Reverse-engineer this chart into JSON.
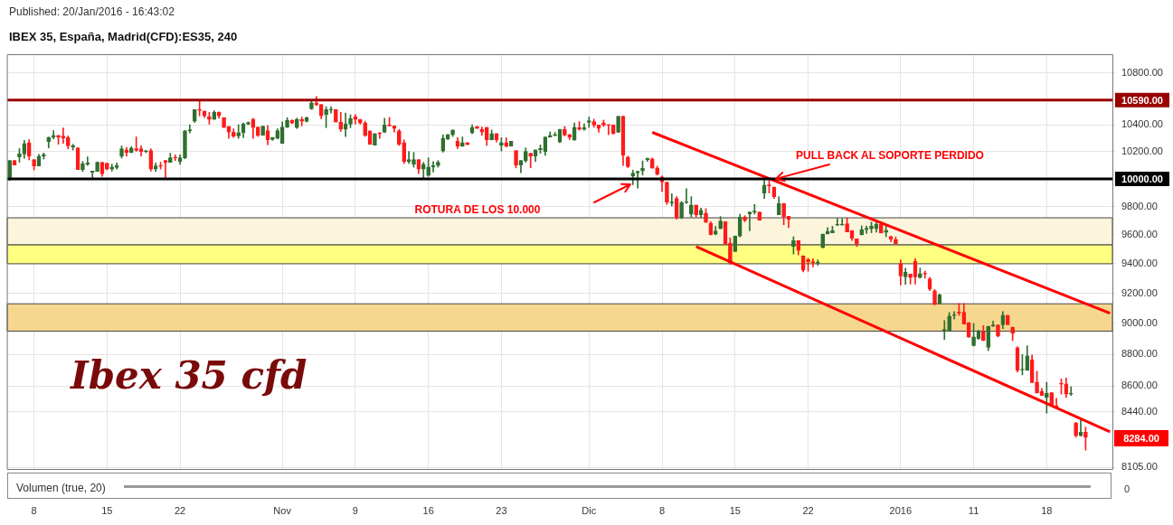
{
  "chart_data": {
    "type": "candlestick",
    "title": "IBEX 35, España, Madrid(CFD):ES35, 240",
    "annotations": [
      "Published: 20/Jan/2016 - 16:43:02",
      "ROTURA DE LOS 10.000",
      {
        "text": "PULL BACK AL SOPORTE PERDIDO",
        "y": 10000
      },
      "Ibex 35 cfd",
      "8284.00",
      "Volumen (true, 20)",
      "0"
    ],
    "categories": [
      null,
      null,
      null,
      null,
      null,
      "8",
      null,
      null,
      null,
      null,
      null,
      null,
      null,
      null,
      null,
      null,
      null,
      null,
      null,
      null,
      "15",
      null,
      null,
      null,
      null,
      null,
      null,
      null,
      null,
      null,
      null,
      null,
      null,
      null,
      null,
      "22",
      null,
      null,
      null,
      null,
      null,
      null,
      null,
      null,
      null,
      null,
      null,
      null,
      null,
      null,
      null,
      null,
      null,
      null,
      null,
      null,
      "Nov",
      null,
      null,
      null,
      null,
      null,
      null,
      null,
      null,
      null,
      null,
      null,
      null,
      null,
      null,
      "9",
      null,
      null,
      null,
      null,
      null,
      null,
      null,
      null,
      null,
      null,
      null,
      null,
      null,
      null,
      "16",
      null,
      null,
      null,
      null,
      null,
      null,
      null,
      null,
      null,
      null,
      null,
      null,
      null,
      null,
      "23",
      null,
      null,
      null,
      null,
      null,
      null,
      null,
      null,
      null,
      null,
      null,
      null,
      null,
      null,
      null,
      null,
      null,
      "Dic",
      null,
      null,
      null,
      null,
      null,
      null,
      null,
      null,
      null,
      null,
      null,
      null,
      null,
      null,
      "8",
      null,
      null,
      null,
      null,
      null,
      null,
      null,
      null,
      null,
      null,
      null,
      null,
      null,
      null,
      "15",
      null,
      null,
      null,
      null,
      null,
      null,
      null,
      null,
      null,
      null,
      null,
      null,
      null,
      null,
      "22",
      null,
      null,
      null,
      null,
      null,
      null,
      null,
      null,
      null,
      null,
      null,
      null,
      null,
      null,
      null,
      null,
      null,
      null,
      "2016",
      null,
      null,
      null,
      null,
      null,
      null,
      null,
      null,
      null,
      null,
      null,
      null,
      null,
      null,
      "11",
      null,
      null,
      null,
      null,
      null,
      null,
      null,
      null,
      null,
      null,
      null,
      null,
      null,
      null,
      "18",
      null,
      null,
      null,
      null,
      null,
      null,
      null,
      null,
      null,
      null,
      null,
      null,
      null
    ],
    "ohlc": [
      [
        10000,
        10134,
        9987,
        10134
      ],
      [
        10134,
        10134,
        10100,
        10100
      ],
      [
        10161,
        10223,
        10121,
        10183
      ],
      [
        10183,
        10284,
        10150,
        10261
      ],
      [
        10268,
        10290,
        10138,
        10167
      ],
      [
        10141,
        10141,
        10065,
        10094
      ],
      [
        10094,
        10179,
        10094,
        10167
      ],
      [
        10167,
        10190,
        10145,
        10176
      ],
      [
        10275,
        10308,
        10228,
        10308
      ],
      [
        10308,
        10357,
        10295,
        10322
      ],
      [
        10322,
        10322,
        10255,
        10308
      ],
      [
        10317,
        10377,
        10261,
        10301
      ],
      [
        10304,
        10317,
        10221,
        10243
      ],
      [
        10234,
        10255,
        10212,
        10243
      ],
      [
        10228,
        10228,
        10067,
        10067
      ],
      [
        10067,
        10127,
        10054,
        10109
      ],
      [
        10107,
        10161,
        10098,
        10116
      ],
      [
        10047,
        10056,
        10004,
        10056
      ],
      [
        10054,
        10125,
        10054,
        10121
      ],
      [
        10121,
        10121,
        10018,
        10036
      ],
      [
        10114,
        10114,
        10065,
        10071
      ],
      [
        10071,
        10107,
        10056,
        10087
      ],
      [
        10083,
        10116,
        10071,
        10096
      ],
      [
        10165,
        10243,
        10152,
        10221
      ],
      [
        10214,
        10232,
        10165,
        10194
      ],
      [
        10192,
        10237,
        10192,
        10226
      ],
      [
        10221,
        10310,
        10203,
        10210
      ],
      [
        10221,
        10243,
        10167,
        10201
      ],
      [
        10199,
        10210,
        10192,
        10201
      ],
      [
        10208,
        10221,
        10056,
        10071
      ],
      [
        10071,
        10116,
        10054,
        10094
      ],
      [
        10094,
        10121,
        10071,
        10092
      ],
      [
        10134,
        10134,
        10000,
        10121
      ],
      [
        10121,
        10188,
        10121,
        10154
      ],
      [
        10154,
        10176,
        10134,
        10152
      ],
      [
        10127,
        10176,
        10105,
        10154
      ],
      [
        10154,
        10360,
        10147,
        10355
      ],
      [
        10355,
        10402,
        10340,
        10364
      ],
      [
        10429,
        10516,
        10419,
        10516
      ],
      [
        10514,
        10581,
        10469,
        10511
      ],
      [
        10507,
        10507,
        10456,
        10469
      ],
      [
        10462,
        10496,
        10406,
        10442
      ],
      [
        10442,
        10509,
        10442,
        10496
      ],
      [
        10496,
        10500,
        10451,
        10469
      ],
      [
        10456,
        10456,
        10380,
        10380
      ],
      [
        10389,
        10389,
        10299,
        10346
      ],
      [
        10346,
        10371,
        10306,
        10315
      ],
      [
        10317,
        10402,
        10299,
        10342
      ],
      [
        10342,
        10415,
        10304,
        10409
      ],
      [
        10406,
        10424,
        10402,
        10418
      ],
      [
        10442,
        10451,
        10299,
        10380
      ],
      [
        10384,
        10384,
        10313,
        10322
      ],
      [
        10322,
        10391,
        10322,
        10391
      ],
      [
        10357,
        10395,
        10252,
        10288
      ],
      [
        10290,
        10306,
        10284,
        10306
      ],
      [
        10299,
        10371,
        10295,
        10357
      ],
      [
        10261,
        10424,
        10261,
        10384
      ],
      [
        10384,
        10456,
        10380,
        10435
      ],
      [
        10435,
        10440,
        10409,
        10415
      ],
      [
        10380,
        10451,
        10373,
        10444
      ],
      [
        10442,
        10460,
        10393,
        10429
      ],
      [
        10427,
        10460,
        10424,
        10456
      ],
      [
        10523,
        10585,
        10518,
        10569
      ],
      [
        10569,
        10618,
        10547,
        10556
      ],
      [
        10556,
        10556,
        10447,
        10469
      ],
      [
        10480,
        10540,
        10380,
        10516
      ],
      [
        10514,
        10540,
        10491,
        10516
      ],
      [
        10516,
        10516,
        10422,
        10422
      ],
      [
        10422,
        10496,
        10351,
        10368
      ],
      [
        10368,
        10491,
        10313,
        10406
      ],
      [
        10406,
        10478,
        10380,
        10449
      ],
      [
        10462,
        10478,
        10406,
        10442
      ],
      [
        10442,
        10442,
        10406,
        10415
      ],
      [
        10415,
        10429,
        10313,
        10322
      ],
      [
        10355,
        10355,
        10255,
        10255
      ],
      [
        10248,
        10335,
        10248,
        10335
      ],
      [
        10335,
        10344,
        10299,
        10333
      ],
      [
        10344,
        10451,
        10344,
        10400
      ],
      [
        10400,
        10458,
        10393,
        10393
      ],
      [
        10393,
        10393,
        10346,
        10373
      ],
      [
        10355,
        10366,
        10246,
        10255
      ],
      [
        10268,
        10288,
        10112,
        10127
      ],
      [
        10127,
        10201,
        10112,
        10141
      ],
      [
        10107,
        10194,
        10085,
        10141
      ],
      [
        10141,
        10141,
        10038,
        10071
      ],
      [
        10071,
        10121,
        10004,
        10107
      ],
      [
        10025,
        10154,
        10018,
        10087
      ],
      [
        10085,
        10127,
        10049,
        10096
      ],
      [
        10098,
        10134,
        10085,
        10121
      ],
      [
        10205,
        10326,
        10196,
        10301
      ],
      [
        10293,
        10328,
        10290,
        10328
      ],
      [
        10326,
        10362,
        10313,
        10362
      ],
      [
        10277,
        10304,
        10223,
        10239
      ],
      [
        10239,
        10310,
        10239,
        10268
      ],
      [
        10268,
        10268,
        10252,
        10252
      ],
      [
        10339,
        10402,
        10335,
        10382
      ],
      [
        10389,
        10389,
        10373,
        10373
      ],
      [
        10368,
        10384,
        10322,
        10346
      ],
      [
        10382,
        10382,
        10246,
        10288
      ],
      [
        10288,
        10362,
        10288,
        10335
      ],
      [
        10335,
        10335,
        10272,
        10288
      ],
      [
        10248,
        10304,
        10205,
        10268
      ],
      [
        10268,
        10304,
        10234,
        10241
      ],
      [
        10241,
        10277,
        10241,
        10277
      ],
      [
        10208,
        10208,
        10080,
        10100
      ],
      [
        10100,
        10134,
        10045,
        10134
      ],
      [
        10134,
        10228,
        10121,
        10201
      ],
      [
        10188,
        10188,
        10080,
        10167
      ],
      [
        10167,
        10214,
        10127,
        10214
      ],
      [
        10214,
        10250,
        10188,
        10223
      ],
      [
        10201,
        10310,
        10172,
        10310
      ],
      [
        10308,
        10348,
        10308,
        10322
      ],
      [
        10319,
        10344,
        10319,
        10328
      ],
      [
        10272,
        10368,
        10266,
        10368
      ],
      [
        10368,
        10389,
        10317,
        10324
      ],
      [
        10328,
        10328,
        10290,
        10308
      ],
      [
        10286,
        10415,
        10286,
        10382
      ],
      [
        10380,
        10426,
        10360,
        10366
      ],
      [
        10366,
        10408,
        10360,
        10380
      ],
      [
        10420,
        10460,
        10382,
        10433
      ],
      [
        10426,
        10444,
        10382,
        10400
      ],
      [
        10400,
        10400,
        10344,
        10373
      ],
      [
        10417,
        10437,
        10388,
        10400
      ],
      [
        10400,
        10404,
        10326,
        10397
      ],
      [
        10400,
        10400,
        10333,
        10333
      ],
      [
        10344,
        10466,
        10344,
        10466
      ],
      [
        10466,
        10466,
        10098,
        10173
      ],
      [
        10160,
        10166,
        10082,
        10089
      ],
      [
        10020,
        10064,
        9957,
        10042
      ],
      [
        10042,
        10055,
        9933,
        10055
      ],
      [
        10058,
        10131,
        10027,
        10078
      ],
      [
        10140,
        10153,
        10127,
        10149
      ],
      [
        10146,
        10153,
        10078,
        10078
      ],
      [
        10080,
        10093,
        10027,
        10033
      ],
      [
        10013,
        10022,
        9908,
        9976
      ],
      [
        9976,
        9976,
        9815,
        9832
      ],
      [
        9826,
        9892,
        9804,
        9830
      ],
      [
        9858,
        9871,
        9710,
        9720
      ],
      [
        9720,
        9837,
        9714,
        9828
      ],
      [
        9828,
        9929,
        9822,
        9834
      ],
      [
        9746,
        9871,
        9725,
        9811
      ],
      [
        9811,
        9811,
        9725,
        9742
      ],
      [
        9742,
        9789,
        9720,
        9774
      ],
      [
        9753,
        9785,
        9688,
        9688
      ],
      [
        9682,
        9692,
        9600,
        9600
      ],
      [
        9604,
        9660,
        9600,
        9628
      ],
      [
        9643,
        9729,
        9643,
        9697
      ],
      [
        9692,
        9692,
        9536,
        9536
      ],
      [
        9542,
        9579,
        9396,
        9408
      ],
      [
        9484,
        9592,
        9484,
        9592
      ],
      [
        9592,
        9746,
        9585,
        9725
      ],
      [
        9725,
        9735,
        9692,
        9703
      ],
      [
        9746,
        9761,
        9628,
        9761
      ],
      [
        9761,
        9815,
        9746,
        9763
      ],
      [
        9761,
        9761,
        9703,
        9703
      ],
      [
        9897,
        10000,
        9858,
        9955
      ],
      [
        9951,
        9987,
        9897,
        9949
      ],
      [
        9940,
        9940,
        9858,
        9871
      ],
      [
        9742,
        9871,
        9742,
        9822
      ],
      [
        9822,
        9822,
        9671,
        9729
      ],
      [
        9731,
        9731,
        9650,
        9710
      ],
      [
        9519,
        9587,
        9467,
        9560
      ],
      [
        9560,
        9560,
        9461,
        9492
      ],
      [
        9455,
        9455,
        9345,
        9355
      ],
      [
        9430,
        9438,
        9349,
        9412
      ],
      [
        9412,
        9434,
        9378,
        9408
      ],
      [
        9405,
        9427,
        9390,
        9409
      ],
      [
        9510,
        9606,
        9510,
        9606
      ],
      [
        9606,
        9651,
        9606,
        9625
      ],
      [
        9615,
        9660,
        9615,
        9630
      ],
      [
        9668,
        9716,
        9665,
        9672
      ],
      [
        9668,
        9714,
        9668,
        9675
      ],
      [
        9679,
        9718,
        9621,
        9621
      ],
      [
        9630,
        9630,
        9561,
        9576
      ],
      [
        9572,
        9572,
        9519,
        9538
      ],
      [
        9600,
        9663,
        9600,
        9637
      ],
      [
        9637,
        9663,
        9610,
        9647
      ],
      [
        9643,
        9690,
        9615,
        9662
      ],
      [
        9643,
        9690,
        9619,
        9675
      ],
      [
        9675,
        9690,
        9613,
        9613
      ],
      [
        9617,
        9675,
        9587,
        9632
      ],
      [
        9589,
        9589,
        9553,
        9570
      ],
      [
        9568,
        9585,
        9538,
        9538
      ],
      [
        9400,
        9427,
        9256,
        9316
      ],
      [
        9310,
        9370,
        9260,
        9342
      ],
      [
        9330,
        9330,
        9262,
        9306
      ],
      [
        9416,
        9436,
        9262,
        9310
      ],
      [
        9306,
        9370,
        9302,
        9332
      ],
      [
        9332,
        9350,
        9302,
        9330
      ],
      [
        9298,
        9308,
        9218,
        9228
      ],
      [
        9216,
        9226,
        9122,
        9127
      ],
      [
        9131,
        9196,
        9127,
        9190
      ],
      [
        8955,
        9019,
        8896,
        8959
      ],
      [
        8955,
        9072,
        8951,
        9049
      ],
      [
        9052,
        9078,
        9029,
        9055
      ],
      [
        9071,
        9132,
        9054,
        9069
      ],
      [
        9074,
        9132,
        8996,
        8996
      ],
      [
        9006,
        9006,
        8910,
        8910
      ],
      [
        8857,
        9000,
        8853,
        8912
      ],
      [
        8902,
        8957,
        8898,
        8947
      ],
      [
        8947,
        8986,
        8888,
        8888
      ],
      [
        8845,
        8982,
        8824,
        8982
      ],
      [
        8984,
        9016,
        8980,
        8986
      ],
      [
        8990,
        8990,
        8912,
        8918
      ],
      [
        8992,
        9078,
        8967,
        9054
      ],
      [
        9054,
        9054,
        8992,
        8992
      ],
      [
        8976,
        8976,
        8888,
        8937
      ],
      [
        8843,
        8849,
        8688,
        8698
      ],
      [
        8700,
        8800,
        8669,
        8702
      ],
      [
        8698,
        8855,
        8698,
        8790
      ],
      [
        8765,
        8796,
        8620,
        8620
      ],
      [
        8624,
        8692,
        8555,
        8555
      ],
      [
        8564,
        8585,
        8540,
        8540
      ],
      [
        8527,
        8623,
        8431,
        8555
      ],
      [
        8558,
        8558,
        8476,
        8476
      ],
      [
        8476,
        8522,
        8462,
        8462
      ],
      [
        8613,
        8644,
        8549,
        8611
      ],
      [
        8613,
        8649,
        8527,
        8549
      ],
      [
        8549,
        8595,
        8540,
        8551
      ],
      [
        8370,
        8375,
        8284,
        8293
      ],
      [
        8293,
        8394,
        8291,
        8315
      ],
      [
        8315,
        8345,
        8207,
        8284
      ],
      null,
      null,
      null,
      null,
      null
    ],
    "series": [
      {
        "type": "line",
        "color": "#ff0000",
        "values": [
          null,
          null,
          null,
          null,
          null,
          null,
          null,
          null,
          null,
          null,
          null,
          null,
          null,
          null,
          null,
          null,
          null,
          null,
          null,
          null,
          null,
          null,
          null,
          null,
          null,
          null,
          null,
          null,
          null,
          null,
          null,
          null,
          null,
          null,
          null,
          null,
          null,
          null,
          null,
          null,
          null,
          null,
          null,
          null,
          null,
          null,
          null,
          null,
          null,
          null,
          null,
          null,
          null,
          null,
          null,
          null,
          null,
          null,
          null,
          null,
          null,
          null,
          null,
          null,
          null,
          null,
          null,
          null,
          null,
          null,
          null,
          null,
          null,
          null,
          null,
          null,
          null,
          null,
          null,
          null,
          null,
          null,
          null,
          null,
          null,
          null,
          null,
          null,
          null,
          null,
          null,
          null,
          null,
          null,
          null,
          null,
          null,
          null,
          null,
          null,
          null,
          null,
          null,
          null,
          null,
          null,
          null,
          null,
          null,
          null,
          null,
          null,
          null,
          null,
          null,
          null,
          null,
          null,
          null,
          null,
          null,
          null,
          null,
          null,
          null,
          null,
          null,
          null,
          null,
          null,
          null,
          null,
          10344,
          null,
          null,
          null,
          null,
          null,
          null,
          null,
          null,
          null,
          null,
          null,
          null,
          null,
          null,
          null,
          null,
          null,
          null,
          null,
          null,
          null,
          null,
          null,
          null,
          null,
          null,
          null,
          null,
          null,
          null,
          null,
          null,
          null,
          null,
          null,
          null,
          null,
          null,
          null,
          null,
          null,
          null,
          null,
          null,
          null,
          null,
          null,
          null,
          null,
          null,
          null,
          null,
          null,
          null,
          null,
          null,
          null,
          null,
          null,
          null,
          null,
          null,
          null,
          null,
          null,
          null,
          null,
          null,
          null,
          null,
          null,
          null,
          null,
          null,
          null,
          null,
          null,
          null,
          null,
          null,
          null,
          null,
          null,
          null,
          null,
          null,
          null,
          null,
          null,
          null,
          null,
          null,
          null,
          9067
        ]
      },
      {
        "type": "line",
        "color": "#ff0000",
        "values": [
          null,
          null,
          null,
          null,
          null,
          null,
          null,
          null,
          null,
          null,
          null,
          null,
          null,
          null,
          null,
          null,
          null,
          null,
          null,
          null,
          null,
          null,
          null,
          null,
          null,
          null,
          null,
          null,
          null,
          null,
          null,
          null,
          null,
          null,
          null,
          null,
          null,
          null,
          null,
          null,
          null,
          null,
          null,
          null,
          null,
          null,
          null,
          null,
          null,
          null,
          null,
          null,
          null,
          null,
          null,
          null,
          null,
          null,
          null,
          null,
          null,
          null,
          null,
          null,
          null,
          null,
          null,
          null,
          null,
          null,
          null,
          null,
          null,
          null,
          null,
          null,
          null,
          null,
          null,
          null,
          null,
          null,
          null,
          null,
          null,
          null,
          null,
          null,
          null,
          null,
          null,
          null,
          null,
          null,
          null,
          null,
          null,
          null,
          null,
          null,
          null,
          null,
          null,
          null,
          null,
          null,
          null,
          null,
          null,
          null,
          null,
          null,
          null,
          null,
          null,
          null,
          null,
          null,
          null,
          null,
          null,
          null,
          null,
          null,
          null,
          null,
          null,
          null,
          null,
          null,
          null,
          null,
          null,
          null,
          null,
          null,
          null,
          null,
          null,
          null,
          null,
          9518,
          null,
          null,
          null,
          null,
          null,
          null,
          null,
          null,
          null,
          null,
          null,
          null,
          null,
          null,
          null,
          null,
          null,
          null,
          null,
          null,
          null,
          null,
          null,
          null,
          null,
          null,
          null,
          null,
          null,
          null,
          null,
          null,
          null,
          null,
          null,
          null,
          null,
          null,
          null,
          null,
          null,
          null,
          null,
          null,
          null,
          null,
          null,
          null,
          null,
          null,
          null,
          null,
          null,
          null,
          null,
          null,
          null,
          null,
          null,
          null,
          null,
          null,
          null,
          null,
          null,
          null,
          null,
          null,
          null,
          null,
          null,
          null,
          null,
          null,
          null,
          null,
          null,
          null,
          null,
          null,
          null,
          null,
          null,
          null,
          8317
        ]
      }
    ],
    "ylim": [
      8095,
      10950
    ],
    "yticks": [
      {
        "value": 8105,
        "label": "8105.00"
      },
      {
        "value": 8440,
        "label": "8440.00"
      },
      {
        "value": 8600,
        "label": "8600.00"
      },
      {
        "value": 8800,
        "label": "8800.00"
      },
      {
        "value": 9000,
        "label": "9000.00"
      },
      {
        "value": 9200,
        "label": "9200.00"
      },
      {
        "value": 9400,
        "label": "9400.00"
      },
      {
        "value": 9600,
        "label": "9600.00"
      },
      {
        "value": 9800,
        "label": "9800.00"
      },
      {
        "value": 10200,
        "label": "10200.00"
      },
      {
        "value": 10400,
        "label": "10400.00"
      },
      {
        "value": 10800,
        "label": "10800.00"
      }
    ],
    "log": "y",
    "grid": true,
    "bands": [
      {
        "axis": "y",
        "from": 9530,
        "to": 9720,
        "color": "#fdf4dc"
      },
      {
        "axis": "y",
        "from": 9400,
        "to": 9530,
        "color": "#ffff80"
      },
      {
        "axis": "y",
        "from": 8950,
        "to": 9130,
        "color": "#f5d78e"
      }
    ],
    "ref_lines": [
      {
        "axis": "y",
        "value": 10590,
        "label": "10590.00",
        "color": "#990000"
      },
      {
        "axis": "y",
        "value": 10000,
        "label": "10000.00",
        "color": "#000000"
      }
    ]
  }
}
